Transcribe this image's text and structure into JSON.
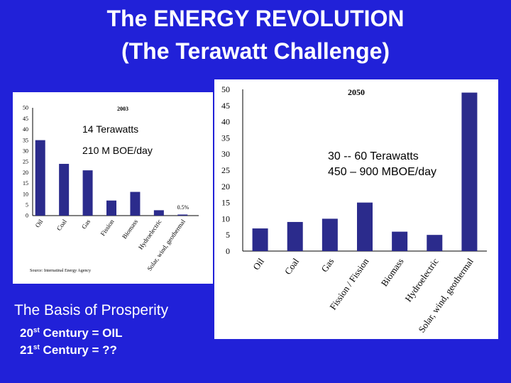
{
  "slide": {
    "title_line1": "The  ENERGY REVOLUTION",
    "title_line2": "(The Terawatt  Challenge)",
    "basis": "The Basis of Prosperity",
    "century20_num": "20",
    "century20_sup": "st",
    "century20_rest": " Century  =  OIL",
    "century21_num": "21",
    "century21_sup": "st",
    "century21_rest": " Century  =  ??"
  },
  "colors": {
    "background": "#2121d8",
    "bar": "#2b2b8c",
    "panel": "#ffffff"
  },
  "chart_data": [
    {
      "type": "bar",
      "title": "2003",
      "categories": [
        "Oil",
        "Coal",
        "Gas",
        "Fission",
        "Biomass",
        "Hydroelectric",
        "Solar, wind, geothermal"
      ],
      "values": [
        35,
        24,
        21,
        7,
        11,
        2.5,
        0.5
      ],
      "ylim": [
        0,
        50
      ],
      "yticks": [
        "0",
        "5",
        "10",
        "15",
        "20",
        "25",
        "30",
        "35",
        "40",
        "45",
        "50"
      ],
      "annotation_value": "0.5%",
      "annotation_line1": "14 Terawatts",
      "annotation_line2": "210 M BOE/day",
      "source": "Source: Internatinal Energy Agency"
    },
    {
      "type": "bar",
      "title": "2050",
      "categories": [
        "Oil",
        "Coal",
        "Gas",
        "Fission / Fission",
        "Biomass",
        "Hydroelectric",
        "Solar, wind, geothermal"
      ],
      "values": [
        7,
        9,
        10,
        15,
        6,
        5,
        49
      ],
      "ylim": [
        0,
        50
      ],
      "yticks": [
        "0",
        "5",
        "10",
        "15",
        "20",
        "25",
        "30",
        "35",
        "40",
        "45",
        "50"
      ],
      "annotation_line1": "30 -- 60 Terawatts",
      "annotation_line2": "450 – 900  MBOE/day"
    }
  ]
}
